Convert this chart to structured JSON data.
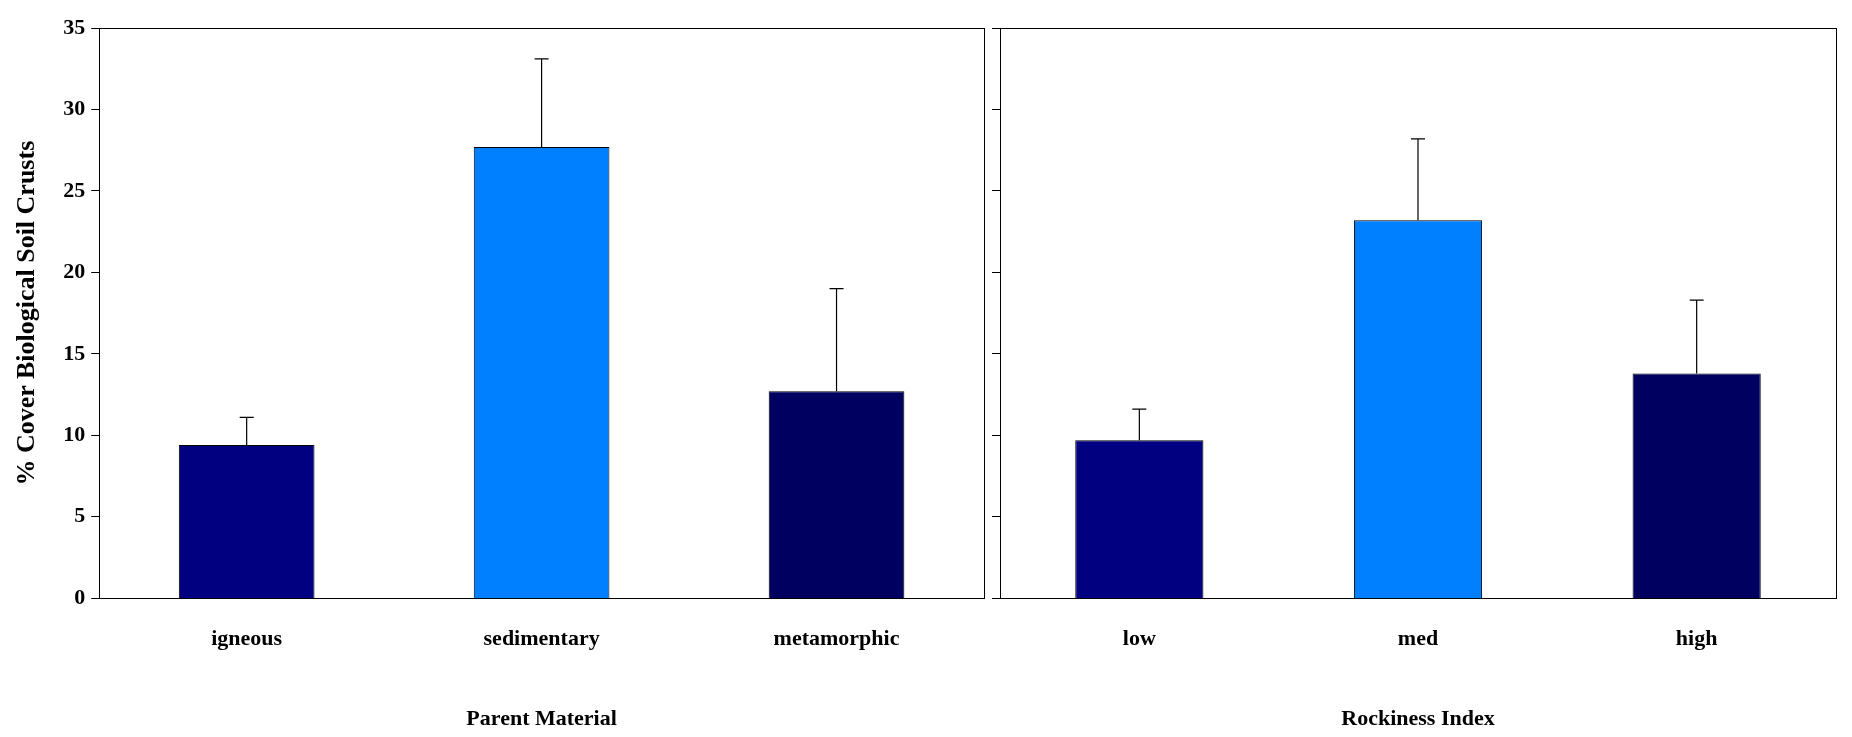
{
  "chart_data": [
    {
      "type": "bar",
      "categories": [
        "igneous",
        "sedimentary",
        "metamorphic"
      ],
      "xlabel": "Parent Material",
      "ylabel": "% Cover Biological Soil Crusts",
      "values": [
        9.4,
        27.7,
        12.7
      ],
      "colors": [
        "#000080",
        "#0080ff",
        "#000060"
      ],
      "errors": [
        [
          9.4,
          11.1
        ],
        [
          27.7,
          33.1
        ],
        [
          12.7,
          19.0
        ]
      ],
      "ylim": [
        0,
        35
      ],
      "yticks": [
        0,
        5,
        10,
        15,
        20,
        25,
        30,
        35
      ],
      "grid": false,
      "legend": false
    },
    {
      "type": "bar",
      "categories": [
        "low",
        "med",
        "high"
      ],
      "xlabel": "Rockiness Index",
      "values": [
        9.7,
        23.2,
        13.8
      ],
      "colors": [
        "#000080",
        "#0080ff",
        "#000060"
      ],
      "errors": [
        [
          9.7,
          11.6
        ],
        [
          23.2,
          28.2
        ],
        [
          13.8,
          18.3
        ]
      ],
      "ylim": [
        0,
        35
      ],
      "yticks": [
        0,
        5,
        10,
        15,
        20,
        25,
        30,
        35
      ],
      "tick_labels": "x",
      "grid": false,
      "legend": false
    }
  ]
}
